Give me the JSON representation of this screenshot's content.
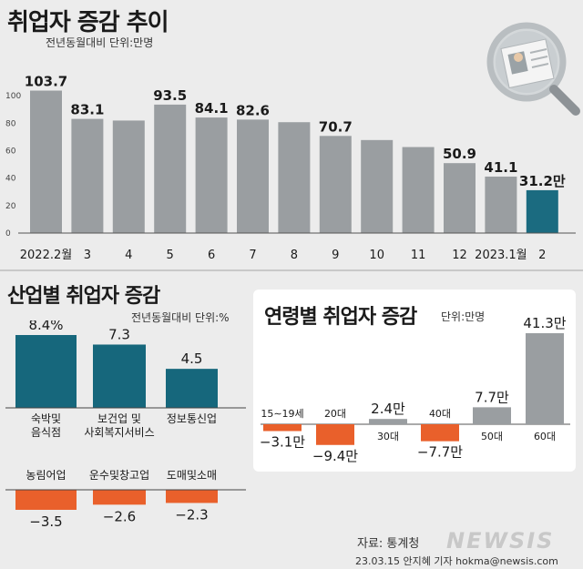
{
  "header": {
    "title": "취업자 증감 추이",
    "unit": "전년동월대비 단위:만명"
  },
  "industry": {
    "title": "산업별 취업자 증감",
    "unit": "전년동월대비 단위:%"
  },
  "age": {
    "title": "연령별 취업자 증감",
    "unit": "단위:만명"
  },
  "footer": {
    "source": "자료: 통계청",
    "credit": "23.03.15 안지혜 기자 hokma@newsis.com",
    "logo": "NEWSIS"
  },
  "colors": {
    "bar_gray": "#9a9ea1",
    "bar_highlight": "#1b6b80",
    "bar_teal": "#16677c",
    "bar_orange": "#e9602b",
    "text_dark": "#1a1a1a"
  },
  "chart_data": [
    {
      "type": "bar",
      "categories": [
        "2022.2월",
        "3",
        "4",
        "5",
        "6",
        "7",
        "8",
        "9",
        "10",
        "11",
        "12",
        "2023.1월",
        "2"
      ],
      "values": [
        103.7,
        83.1,
        81.9,
        93.5,
        84.1,
        82.6,
        80.7,
        70.7,
        67.7,
        62.6,
        50.9,
        41.1,
        31.2
      ],
      "data_labels": [
        "103.7",
        "83.1",
        "",
        "93.5",
        "84.1",
        "82.6",
        "",
        "70.7",
        "",
        "",
        "50.9",
        "41.1",
        "31.2만"
      ],
      "highlight_index": 12,
      "yticks": [
        0,
        20,
        40,
        60,
        80,
        100
      ],
      "ylim": [
        0,
        110
      ]
    },
    {
      "type": "bar",
      "categories": [
        "숙박및\n음식점",
        "보건업 및\n사회복지서비스",
        "정보통신업",
        "농림어업",
        "운수및창고업",
        "도매및소매"
      ],
      "values": [
        8.4,
        7.3,
        4.5,
        -3.5,
        -2.6,
        -2.3
      ],
      "data_labels": [
        "8.4%",
        "7.3",
        "4.5",
        "−3.5",
        "−2.6",
        "−2.3"
      ]
    },
    {
      "type": "bar",
      "categories": [
        "15∼19세",
        "20대",
        "30대",
        "40대",
        "50대",
        "60대"
      ],
      "values": [
        -3.1,
        -9.4,
        2.4,
        -7.7,
        7.7,
        41.3
      ],
      "data_labels": [
        "−3.1만",
        "−9.4만",
        "2.4만",
        "−7.7만",
        "7.7만",
        "41.3만"
      ]
    }
  ]
}
